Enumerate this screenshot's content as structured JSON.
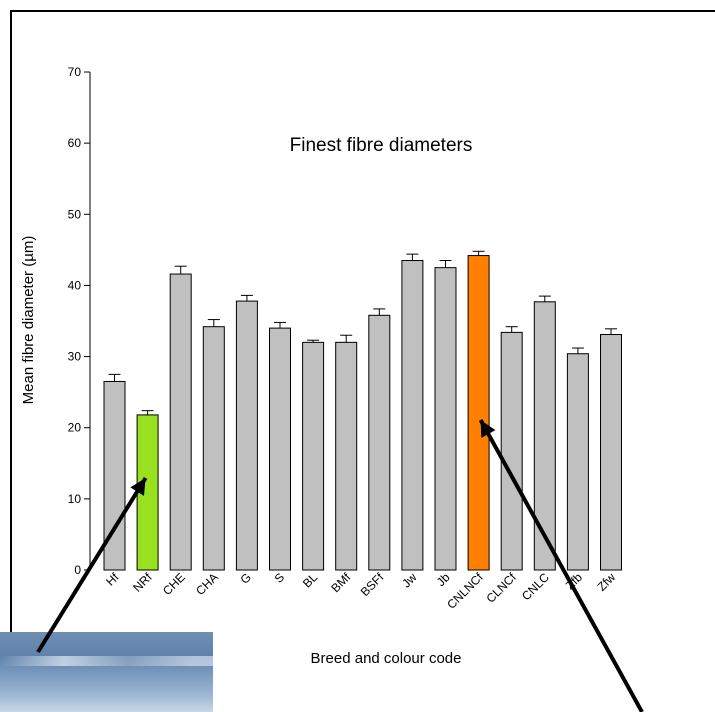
{
  "chart_data": {
    "type": "bar",
    "title": "Finest fibre diameters",
    "xlabel": "Breed and colour code",
    "ylabel": "Mean fibre diameter (µm)",
    "ylim": [
      0,
      70
    ],
    "yticks": [
      0,
      10,
      20,
      30,
      40,
      50,
      60,
      70
    ],
    "categories": [
      "Hf",
      "NRf",
      "CHE",
      "CHA",
      "G",
      "S",
      "BL",
      "BMf",
      "BSFf",
      "Jw",
      "Jb",
      "CNLNCf",
      "CLNCf",
      "CNLC",
      "Zfb",
      "Zfw"
    ],
    "values": [
      26.5,
      21.8,
      41.6,
      34.2,
      37.8,
      34.0,
      32.0,
      32.0,
      35.8,
      43.5,
      42.5,
      44.2,
      33.4,
      37.7,
      30.4,
      33.1
    ],
    "errors": [
      1.0,
      0.6,
      1.1,
      1.0,
      0.8,
      0.8,
      0.3,
      1.0,
      0.9,
      0.9,
      1.0,
      0.6,
      0.8,
      0.8,
      0.8,
      0.8
    ],
    "highlight_colors": {
      "NRf": "#99e01f",
      "CNLNCf": "#ff7f00"
    },
    "default_bar_color": "#c0c0c0",
    "annotations": [
      "arrow pointing to NRf bar",
      "arrow pointing to CNLNCf bar"
    ]
  }
}
